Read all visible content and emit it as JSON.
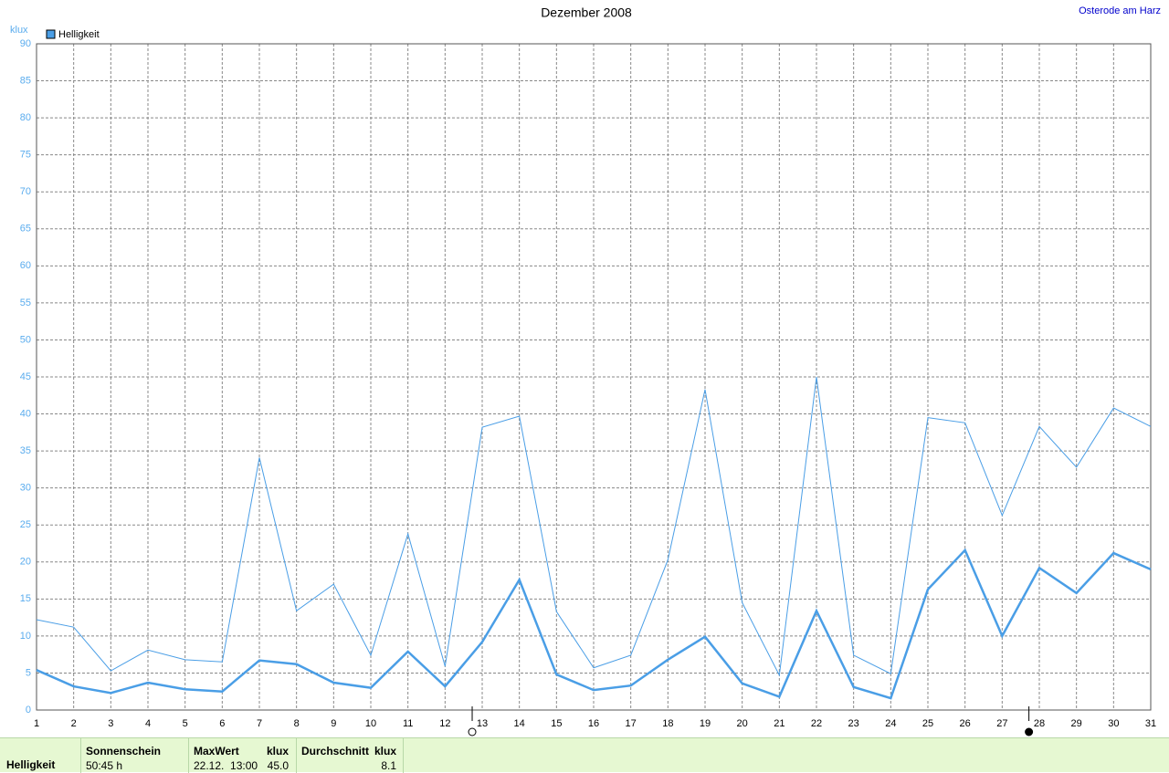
{
  "chart_data": {
    "type": "line",
    "title": "Dezember 2008",
    "location": "Osterode am Harz",
    "y_label": "klux",
    "legend": "Helligkeit",
    "x": [
      1,
      2,
      3,
      4,
      5,
      6,
      7,
      8,
      9,
      10,
      11,
      12,
      13,
      14,
      15,
      16,
      17,
      18,
      19,
      20,
      21,
      22,
      23,
      24,
      25,
      26,
      27,
      28,
      29,
      30,
      31
    ],
    "series": [
      {
        "color": "#4a9ee6",
        "width": 1,
        "values": [
          12.2,
          11.2,
          5.3,
          8.1,
          6.8,
          6.5,
          34.1,
          13.4,
          17.0,
          7.4,
          23.8,
          5.9,
          38.2,
          39.7,
          13.3,
          5.7,
          7.4,
          20.3,
          43.3,
          14.5,
          4.7,
          45.0,
          7.4,
          4.9,
          39.5,
          38.8,
          26.3,
          38.3,
          32.8,
          40.8,
          38.3
        ]
      },
      {
        "color": "#4a9ee6",
        "width": 2.5,
        "values": [
          5.4,
          3.2,
          2.3,
          3.7,
          2.8,
          2.5,
          6.7,
          6.2,
          3.7,
          3.0,
          7.9,
          3.2,
          9.2,
          17.6,
          4.8,
          2.7,
          3.3,
          6.8,
          9.9,
          3.6,
          1.8,
          13.4,
          3.1,
          1.6,
          16.3,
          21.6,
          10.0,
          19.2,
          15.8,
          21.2,
          19.0
        ]
      }
    ],
    "xlim": [
      1,
      31
    ],
    "xticks": [
      1,
      2,
      3,
      4,
      5,
      6,
      7,
      8,
      9,
      10,
      11,
      12,
      13,
      14,
      15,
      16,
      17,
      18,
      19,
      20,
      21,
      22,
      23,
      24,
      25,
      26,
      27,
      28,
      29,
      30,
      31
    ],
    "ylim": [
      0,
      90
    ],
    "yticks": [
      0,
      5,
      10,
      15,
      20,
      25,
      30,
      35,
      40,
      45,
      50,
      55,
      60,
      65,
      70,
      75,
      80,
      85,
      90
    ],
    "grid": true,
    "moon_markers": [
      {
        "x": 12.73,
        "filled": false
      },
      {
        "x": 27.72,
        "filled": true
      }
    ]
  },
  "summary": {
    "row_label": "Helligkeit",
    "sunshine_header": "Sonnenschein",
    "sunshine_value": "50:45 h",
    "max_header": "MaxWert",
    "max_unit": "klux",
    "max_time": "22.12.  13:00",
    "max_value": "45.0",
    "avg_header": "Durchschnitt",
    "avg_unit": "klux",
    "avg_value": "8.1"
  }
}
